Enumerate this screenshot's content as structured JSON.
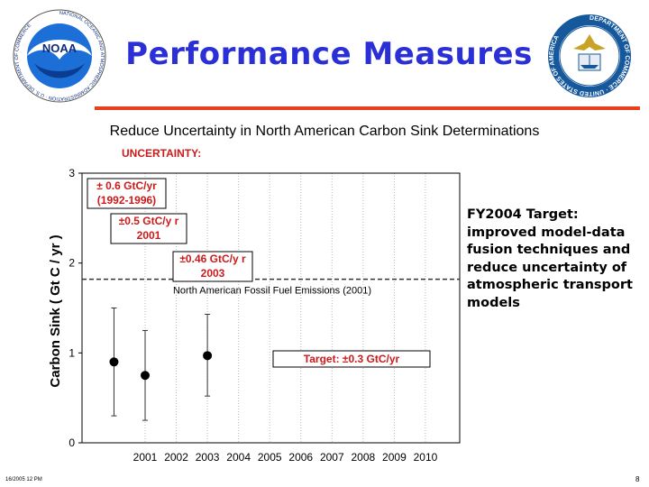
{
  "header": {
    "title": "Performance Measures",
    "noaa_logo": {
      "icon": "noaa-logo",
      "center_text": "NOAA",
      "ring_text": "NATIONAL OCEANIC AND ATMOSPHERIC ADMINISTRATION · U.S. DEPARTMENT OF COMMERCE"
    },
    "commerce_seal": {
      "icon": "department-of-commerce-seal",
      "ring_text": "DEPARTMENT OF COMMERCE · UNITED STATES OF AMERICA"
    },
    "rule_color": "#e8401c",
    "title_color": "#2a2fd6"
  },
  "subtitle": "Reduce Uncertainty in North American Carbon Sink Determinations",
  "uncertainty_label": "UNCERTAINTY:",
  "side_text": "FY2004 Target: improved model-data fusion techniques and reduce uncertainty of atmospheric transport models",
  "footer": {
    "date": "16/2005 12 PM",
    "page": "8"
  },
  "chart_data": {
    "type": "scatter",
    "title": "",
    "xlabel": "",
    "ylabel": "Carbon Sink ( Gt C / yr )",
    "ylim": [
      0,
      3
    ],
    "y_ticks": [
      "0",
      "1",
      "2",
      "3"
    ],
    "x_ticks": [
      "2001",
      "2002",
      "2003",
      "2004",
      "2005",
      "2006",
      "2007",
      "2008",
      "2009",
      "2010"
    ],
    "grid": "vertical dotted",
    "points": [
      {
        "x": "2000",
        "y": 0.9,
        "low": 0.3,
        "high": 1.5
      },
      {
        "x": "2001",
        "y": 0.75,
        "low": 0.25,
        "high": 1.25
      },
      {
        "x": "2003",
        "y": 0.97,
        "low": 0.52,
        "high": 1.43
      }
    ],
    "reference_line": {
      "y": 1.82,
      "label": "North American Fossil Fuel Emissions (2001)",
      "style": "dashed"
    },
    "annotations": [
      {
        "lines": [
          "± 0.6 GtC/yr",
          "(1992-1996)"
        ]
      },
      {
        "lines": [
          "±0.5 GtC/y r",
          "2001"
        ]
      },
      {
        "lines": [
          "±0.46 GtC/y r",
          "2003"
        ]
      },
      {
        "lines": [
          "Target: ±0.3 GtC/yr"
        ]
      }
    ],
    "annotation_color": "#cc1a1a"
  }
}
